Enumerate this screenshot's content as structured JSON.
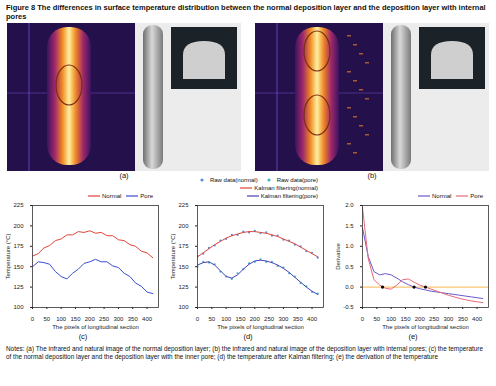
{
  "figure": {
    "title": "Figure 8 The differences in surface temperature distribution between the normal deposition layer and the deposition layer with internal pores",
    "panel_labels": [
      "(a)",
      "(b)",
      "(c)",
      "(d)",
      "(e)"
    ],
    "notes": "Notes: (a) The infrared and natural image of the normal deposition layer; (b) the infrared and natural image of the deposition layer with internal pores; (c) the temperature of the normal deposition layer and the deposition layer with the inner pore; (d) the temperature after Kalman filtering; (e) the derivation of the temperature"
  },
  "chart_data": [
    {
      "type": "line",
      "x_label": "The pixels of longitudinal section",
      "y_label": "Temperature (°C)",
      "x": [
        0,
        20,
        40,
        60,
        80,
        100,
        120,
        140,
        160,
        180,
        200,
        220,
        240,
        260,
        280,
        300,
        320,
        340,
        360,
        380,
        400,
        420
      ],
      "series": [
        {
          "name": "Normal",
          "color": "#e0443a",
          "values": [
            163,
            166,
            173,
            176,
            182,
            184,
            189,
            189,
            193,
            192,
            194,
            191,
            192,
            188,
            188,
            183,
            182,
            177,
            175,
            169,
            167,
            161
          ]
        },
        {
          "name": "Pore",
          "color": "#3b4fd0",
          "values": [
            150,
            156,
            155,
            153,
            144,
            138,
            135,
            142,
            147,
            154,
            156,
            159,
            156,
            156,
            151,
            149,
            142,
            138,
            130,
            126,
            119,
            117
          ]
        }
      ],
      "xlim": [
        0,
        440
      ],
      "xticks": [
        0,
        50,
        100,
        150,
        200,
        250,
        300,
        350,
        400
      ],
      "ylim": [
        100,
        225
      ],
      "yticks": [
        100,
        125,
        150,
        175,
        200,
        225
      ],
      "grid": false,
      "legend": "top-right"
    },
    {
      "type": "line",
      "x_label": "The pixels of longitudinal section",
      "y_label": "Temperature (°C)",
      "x": [
        0,
        20,
        40,
        60,
        80,
        100,
        120,
        140,
        160,
        180,
        200,
        220,
        240,
        260,
        280,
        300,
        320,
        340,
        360,
        380,
        400,
        420
      ],
      "series": [
        {
          "name": "Raw data(normal)",
          "color": "#5b8fd6",
          "type": "scatter",
          "marker": "dot",
          "values": [
            163,
            166,
            173,
            176,
            182,
            184,
            189,
            189,
            193,
            192,
            194,
            191,
            192,
            188,
            188,
            183,
            182,
            177,
            175,
            169,
            167,
            161
          ]
        },
        {
          "name": "Raw data(pore)",
          "color": "#3fb5c4",
          "type": "scatter",
          "marker": "dot",
          "values": [
            150,
            156,
            155,
            153,
            144,
            138,
            135,
            142,
            147,
            154,
            156,
            159,
            156,
            156,
            151,
            149,
            142,
            138,
            130,
            126,
            119,
            117
          ]
        },
        {
          "name": "Kalman filtering(normal)",
          "color": "#e0443a",
          "type": "line",
          "values": [
            162,
            167,
            172,
            177,
            181,
            185,
            188,
            190,
            192,
            193,
            193,
            192,
            191,
            189,
            187,
            184,
            181,
            178,
            174,
            170,
            166,
            162
          ]
        },
        {
          "name": "Kalman filtering(pore)",
          "color": "#4a3fb5",
          "type": "line",
          "values": [
            152,
            155,
            156,
            152,
            145,
            138,
            136,
            140,
            147,
            153,
            157,
            158,
            157,
            155,
            152,
            148,
            143,
            137,
            131,
            125,
            120,
            116
          ]
        }
      ],
      "xlim": [
        0,
        440
      ],
      "xticks": [
        0,
        50,
        100,
        150,
        200,
        250,
        300,
        350,
        400
      ],
      "ylim": [
        100,
        225
      ],
      "yticks": [
        100,
        125,
        150,
        175,
        200,
        225
      ],
      "grid": false,
      "legend": "top-right"
    },
    {
      "type": "line",
      "x_label": "The pixels of longitudinal section",
      "y_label": "Derivative",
      "x": [
        0,
        20,
        40,
        60,
        80,
        100,
        120,
        140,
        160,
        180,
        200,
        220,
        240,
        260,
        280,
        300,
        320,
        340,
        360,
        380,
        400,
        420
      ],
      "series": [
        {
          "name": "Normal",
          "color": "#6a5acd",
          "values": [
            1.45,
            0.75,
            0.38,
            0.3,
            0.33,
            0.3,
            0.22,
            0.13,
            0.06,
            0.0,
            -0.04,
            -0.07,
            -0.1,
            -0.12,
            -0.14,
            -0.16,
            -0.18,
            -0.2,
            -0.22,
            -0.24,
            -0.26,
            -0.28
          ]
        },
        {
          "name": "Pore",
          "color": "#e8697a",
          "values": [
            1.95,
            0.7,
            0.18,
            0.05,
            -0.03,
            -0.05,
            0.05,
            0.18,
            0.2,
            0.12,
            0.05,
            0.0,
            -0.05,
            -0.1,
            -0.15,
            -0.2,
            -0.24,
            -0.28,
            -0.31,
            -0.34,
            -0.36,
            -0.38
          ]
        }
      ],
      "reference_line": {
        "value": 0,
        "color": "#f5a623"
      },
      "points": {
        "x": [
          70,
          180,
          220
        ],
        "values": [
          0,
          0,
          0
        ],
        "color": "#000000",
        "marker": "dot"
      },
      "xlim": [
        0,
        440
      ],
      "xticks": [
        0,
        50,
        100,
        150,
        200,
        250,
        300,
        350,
        400
      ],
      "ylim": [
        -0.5,
        2.0
      ],
      "yticks": [
        -0.5,
        {
          "value": 0,
          "label": "0.0"
        },
        0.5,
        {
          "value": 1,
          "label": "1.0"
        },
        1.5,
        {
          "value": 2,
          "label": "2.0"
        }
      ],
      "grid": false,
      "legend": "top-right"
    }
  ]
}
